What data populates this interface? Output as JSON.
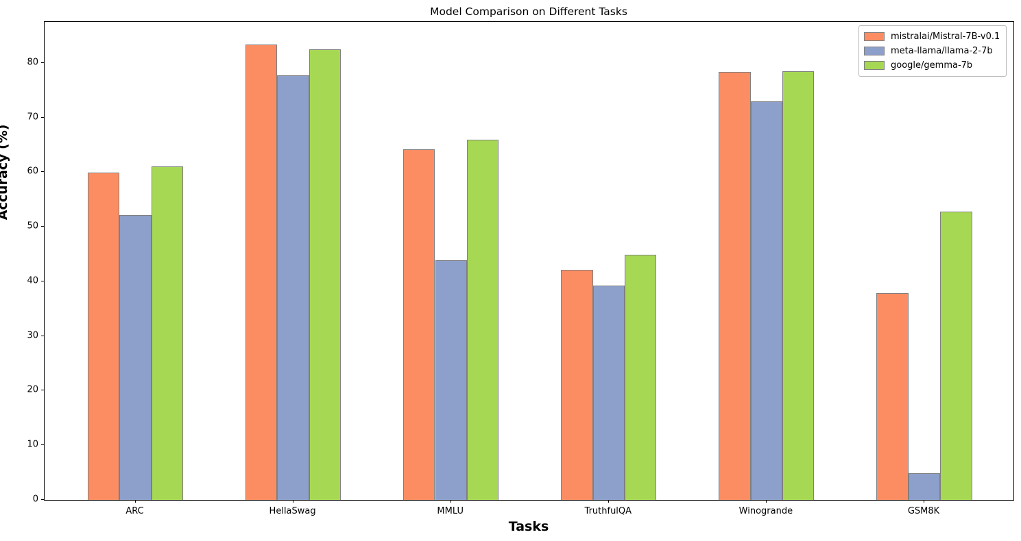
{
  "chart_data": {
    "type": "bar",
    "title": "Model Comparison on Different Tasks",
    "xlabel": "Tasks",
    "ylabel": "Accuracy (%)",
    "categories": [
      "ARC",
      "HellaSwag",
      "MMLU",
      "TruthfulQA",
      "Winogrande",
      "GSM8K"
    ],
    "series": [
      {
        "name": "mistralai/Mistral-7B-v0.1",
        "color": "#fc8d62",
        "values": [
          59.98,
          83.31,
          64.16,
          42.15,
          78.37,
          37.83
        ]
      },
      {
        "name": "meta-llama/llama-2-7b",
        "color": "#8da0cb",
        "values": [
          52.1,
          77.7,
          43.9,
          39.3,
          73.0,
          4.9
        ]
      },
      {
        "name": "google/gemma-7b",
        "color": "#a6d854",
        "values": [
          61.1,
          82.5,
          66.0,
          44.9,
          78.5,
          52.8
        ]
      }
    ],
    "yticks": [
      0,
      10,
      20,
      30,
      40,
      50,
      60,
      70,
      80
    ],
    "ylim": [
      0,
      87.5
    ],
    "bar_edge_color": "#7f7f7f",
    "legend_position": "upper right",
    "grid": false,
    "plot_background": "#ffffff"
  }
}
